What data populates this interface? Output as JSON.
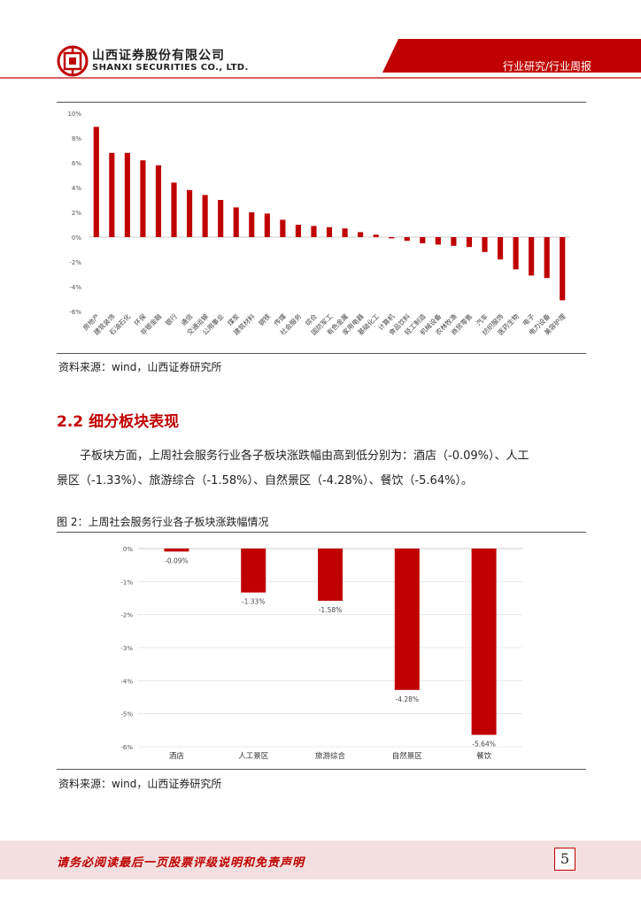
{
  "header": {
    "company_cn": "山西证券股份有限公司",
    "company_en": "SHANXI SECURITIES CO., LTD.",
    "report_type": "行业研究/行业周报",
    "brand_color": "#c00000"
  },
  "figure1": {
    "source": "资料来源：wind，山西证券研究所"
  },
  "section": {
    "number": "2.2",
    "title": "细分板块表现",
    "paragraph_line1": "子板块方面，上周社会服务行业各子板块涨跌幅由高到低分别为：酒店（-0.09%）、人工",
    "paragraph_line2": "景区（-1.33%）、旅游综合（-1.58%）、自然景区（-4.28%）、餐饮（-5.64%）。"
  },
  "figure2": {
    "title": "图 2：上周社会服务行业各子板块涨跌幅情况",
    "source": "资料来源：wind，山西证券研究所"
  },
  "footer": {
    "disclaimer": "请务必阅读最后一页股票评级说明和免责声明",
    "page_number": "5"
  },
  "chart_data": [
    {
      "type": "bar",
      "title": "",
      "xlabel": "",
      "ylabel": "",
      "ylim": [
        -6,
        10
      ],
      "yticks": [
        "10%",
        "8%",
        "6%",
        "4%",
        "2%",
        "0%",
        "-2%",
        "-4%",
        "-6%"
      ],
      "grid": false,
      "color": "#c00000",
      "categories": [
        "房地产",
        "建筑装饰",
        "石油石化",
        "环保",
        "非银金融",
        "银行",
        "通信",
        "交通运输",
        "公用事业",
        "煤炭",
        "建筑材料",
        "钢铁",
        "传媒",
        "社会服务",
        "综合",
        "国防军工",
        "有色金属",
        "家用电器",
        "基础化工",
        "计算机",
        "食品饮料",
        "轻工制造",
        "机械设备",
        "农林牧渔",
        "商贸零售",
        "汽车",
        "纺织服饰",
        "医药生物",
        "电子",
        "电力设备",
        "美容护理"
      ],
      "values": [
        8.9,
        6.8,
        6.8,
        6.2,
        5.8,
        4.4,
        3.8,
        3.4,
        3.0,
        2.4,
        2.0,
        1.9,
        1.4,
        1.0,
        0.9,
        0.8,
        0.7,
        0.4,
        0.2,
        -0.1,
        -0.3,
        -0.5,
        -0.6,
        -0.7,
        -0.8,
        -1.2,
        -1.8,
        -2.6,
        -3.1,
        -3.3,
        -5.1
      ]
    },
    {
      "type": "bar",
      "title": "",
      "xlabel": "",
      "ylabel": "",
      "ylim": [
        -6,
        0
      ],
      "yticks": [
        "0%",
        "-1%",
        "-2%",
        "-3%",
        "-4%",
        "-5%",
        "-6%"
      ],
      "grid": true,
      "color": "#c00000",
      "categories": [
        "酒店",
        "人工景区",
        "旅游综合",
        "自然景区",
        "餐饮"
      ],
      "values": [
        -0.09,
        -1.33,
        -1.58,
        -4.28,
        -5.64
      ],
      "data_labels": [
        "-0.09%",
        "-1.33%",
        "-1.58%",
        "-4.28%",
        "-5.64%"
      ]
    }
  ]
}
